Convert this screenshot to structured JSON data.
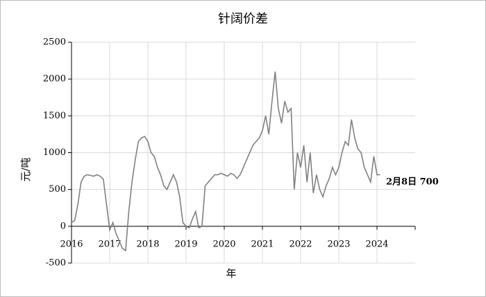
{
  "chart_data": {
    "type": "line",
    "title": "针阔价差",
    "ylabel": "元/吨",
    "xlabel": "年",
    "annotation": "2月8日 700",
    "x": [
      2016,
      2016.083,
      2016.167,
      2016.25,
      2016.333,
      2016.417,
      2016.5,
      2016.583,
      2016.667,
      2016.75,
      2016.833,
      2016.917,
      2017,
      2017.083,
      2017.167,
      2017.25,
      2017.333,
      2017.417,
      2017.5,
      2017.583,
      2017.667,
      2017.75,
      2017.833,
      2017.917,
      2018,
      2018.083,
      2018.167,
      2018.25,
      2018.333,
      2018.417,
      2018.5,
      2018.583,
      2018.667,
      2018.75,
      2018.833,
      2018.917,
      2019,
      2019.083,
      2019.167,
      2019.25,
      2019.333,
      2019.417,
      2019.5,
      2019.583,
      2019.667,
      2019.75,
      2019.833,
      2019.917,
      2020,
      2020.083,
      2020.167,
      2020.25,
      2020.333,
      2020.417,
      2020.5,
      2020.583,
      2020.667,
      2020.75,
      2020.833,
      2020.917,
      2021,
      2021.083,
      2021.167,
      2021.25,
      2021.333,
      2021.417,
      2021.5,
      2021.583,
      2021.667,
      2021.75,
      2021.833,
      2021.917,
      2022,
      2022.083,
      2022.167,
      2022.25,
      2022.333,
      2022.417,
      2022.5,
      2022.583,
      2022.667,
      2022.75,
      2022.833,
      2022.917,
      2023,
      2023.083,
      2023.167,
      2023.25,
      2023.333,
      2023.417,
      2023.5,
      2023.583,
      2023.667,
      2023.75,
      2023.833,
      2023.917,
      2024,
      2024.083
    ],
    "series": [
      {
        "name": "针阔价差",
        "color": "#808080",
        "values": [
          50,
          80,
          300,
          600,
          680,
          700,
          690,
          680,
          700,
          680,
          640,
          300,
          -50,
          50,
          -100,
          -200,
          -300,
          -330,
          200,
          600,
          900,
          1150,
          1200,
          1220,
          1150,
          1000,
          950,
          800,
          700,
          550,
          500,
          600,
          700,
          600,
          400,
          50,
          0,
          -20,
          100,
          200,
          -20,
          0,
          550,
          600,
          650,
          700,
          700,
          720,
          700,
          680,
          720,
          700,
          650,
          700,
          800,
          900,
          1000,
          1100,
          1150,
          1200,
          1300,
          1500,
          1250,
          1700,
          2100,
          1600,
          1400,
          1700,
          1550,
          1600,
          500,
          1000,
          800,
          1100,
          600,
          1000,
          450,
          700,
          500,
          400,
          550,
          650,
          800,
          700,
          800,
          1000,
          1150,
          1100,
          1450,
          1200,
          1050,
          1000,
          800,
          700,
          600,
          950,
          700,
          700
        ]
      }
    ],
    "xlim": [
      2016,
      2025
    ],
    "xticks": [
      2016,
      2017,
      2018,
      2019,
      2020,
      2021,
      2022,
      2023,
      2024
    ],
    "ylim": [
      -500,
      2500
    ],
    "yticks": [
      -500,
      0,
      500,
      1000,
      1500,
      2000,
      2500
    ],
    "grid": true
  }
}
